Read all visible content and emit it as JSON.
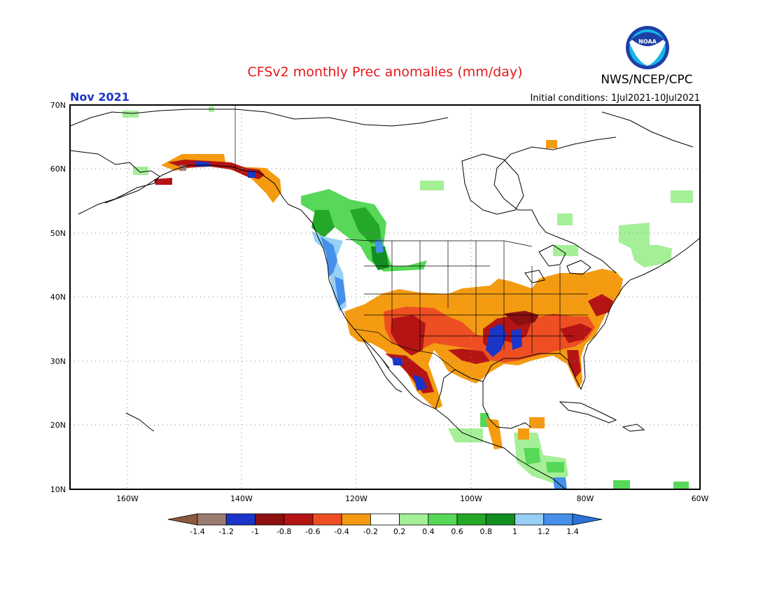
{
  "header": {
    "title": "CFSv2 monthly Prec anomalies (mm/day)",
    "month_label": "Nov 2021",
    "agency": "NWS/NCEP/CPC",
    "initial_conditions": "Initial conditions:  1Jul2021-10Jul2021",
    "logo_text": "NOAA"
  },
  "map": {
    "lon_labels": [
      "160W",
      "140W",
      "120W",
      "100W",
      "80W",
      "60W"
    ],
    "lat_labels": [
      "70N",
      "60N",
      "50N",
      "40N",
      "30N",
      "20N",
      "10N"
    ]
  },
  "legend": {
    "labels": [
      "-1.4",
      "-1.2",
      "-1",
      "-0.8",
      "-0.6",
      "-0.4",
      "-0.2",
      "0.2",
      "0.4",
      "0.6",
      "0.8",
      "1",
      "1.2",
      "1.4"
    ],
    "bins": [
      {
        "range": "< -1.4",
        "color": "#8b5a3c"
      },
      {
        "range": "-1.4 to -1.2",
        "color": "#9b7b70"
      },
      {
        "range": "-1.2 to -1",
        "color": "#1a35c8"
      },
      {
        "range": "-1 to -0.8",
        "color": "#8c1010"
      },
      {
        "range": "-0.8 to -0.6",
        "color": "#b51414"
      },
      {
        "range": "-0.6 to -0.4",
        "color": "#ee4f22"
      },
      {
        "range": "-0.4 to -0.2",
        "color": "#f49b12"
      },
      {
        "range": "-0.2 to 0.2",
        "color": "#ffffff"
      },
      {
        "range": "0.2 to 0.4",
        "color": "#a5ef98"
      },
      {
        "range": "0.4 to 0.6",
        "color": "#57d858"
      },
      {
        "range": "0.6 to 0.8",
        "color": "#24a828"
      },
      {
        "range": "0.8 to 1",
        "color": "#128f20"
      },
      {
        "range": "1 to 1.2",
        "color": "#98cff5"
      },
      {
        "range": "1.2 to 1.4",
        "color": "#4590ea"
      },
      {
        "range": "> 1.4",
        "color": "#2a74d8"
      }
    ]
  },
  "colors": {
    "title": "#e31a1c",
    "month_label": "#1a35c8",
    "frame": "#000000",
    "grid": "#8a8a8a",
    "coast": "#000000"
  }
}
